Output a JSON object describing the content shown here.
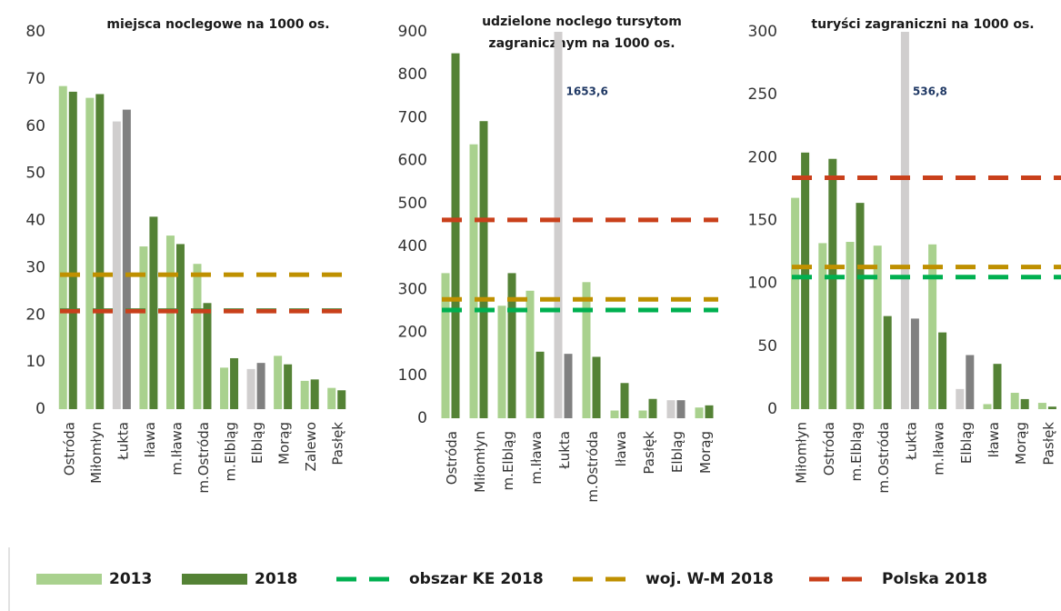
{
  "chart_data": [
    {
      "type": "bar",
      "title": [
        "miejsca noclegowe na 1000 os."
      ],
      "categories": [
        "Ostróda",
        "Miłomłyn",
        "Łukta",
        "Iława",
        "m.Iława",
        "m.Ostróda",
        "m.Elbląg",
        "Elbląg",
        "Morąg",
        "Zalewo",
        "Pasłęk"
      ],
      "series": [
        {
          "name": "2013",
          "color": "#a9d18e",
          "values": [
            68.5,
            66,
            61,
            34.5,
            36.8,
            30.8,
            8.8,
            8.5,
            11.3,
            6,
            4.5
          ],
          "colors": [
            "#a9d18e",
            "#a9d18e",
            "#d0cece",
            "#a9d18e",
            "#a9d18e",
            "#a9d18e",
            "#a9d18e",
            "#d0cece",
            "#a9d18e",
            "#a9d18e",
            "#a9d18e"
          ]
        },
        {
          "name": "2018",
          "color": "#548235",
          "values": [
            67.3,
            66.8,
            63.5,
            40.8,
            35,
            22.5,
            10.8,
            9.8,
            9.5,
            6.3,
            4
          ],
          "colors": [
            "#548235",
            "#548235",
            "#808080",
            "#548235",
            "#548235",
            "#548235",
            "#548235",
            "#808080",
            "#548235",
            "#548235",
            "#548235"
          ]
        }
      ],
      "reference_lines": [
        {
          "name": "obszar KE 2018",
          "color": "#00b050",
          "value": 20.9
        },
        {
          "name": "woj. W-M 2018",
          "color": "#bf9000",
          "value": 28.5
        },
        {
          "name": "Polska 2018",
          "color": "#c9401b",
          "value": 20.8
        }
      ],
      "ylim": [
        0,
        80
      ],
      "yticks": [
        0,
        10,
        20,
        30,
        40,
        50,
        60,
        70,
        80
      ]
    },
    {
      "type": "bar",
      "title": [
        "udzielone noclego tursytom",
        "zagranicznym na 1000 os."
      ],
      "categories": [
        "Ostróda",
        "Miłomłyn",
        "m.Elbląg",
        "m.Iława",
        "Łukta",
        "m.Ostróda",
        "Iława",
        "Pasłęk",
        "Elbląg",
        "Morąg"
      ],
      "series": [
        {
          "name": "2013",
          "color": "#a9d18e",
          "values": [
            338,
            638,
            262,
            297,
            1653.6,
            317,
            18,
            18,
            42,
            25
          ],
          "value_labels": [
            null,
            null,
            null,
            null,
            "1653,6",
            null,
            null,
            null,
            null,
            null
          ],
          "colors": [
            "#a9d18e",
            "#a9d18e",
            "#a9d18e",
            "#a9d18e",
            "#d0cece",
            "#a9d18e",
            "#a9d18e",
            "#a9d18e",
            "#d0cece",
            "#a9d18e"
          ]
        },
        {
          "name": "2018",
          "color": "#548235",
          "values": [
            850,
            692,
            338,
            155,
            150,
            143,
            82,
            45,
            42,
            30
          ],
          "colors": [
            "#548235",
            "#548235",
            "#548235",
            "#548235",
            "#808080",
            "#548235",
            "#548235",
            "#548235",
            "#808080",
            "#548235"
          ]
        }
      ],
      "reference_lines": [
        {
          "name": "obszar KE 2018",
          "color": "#00b050",
          "value": 252
        },
        {
          "name": "woj. W-M 2018",
          "color": "#bf9000",
          "value": 277
        },
        {
          "name": "Polska 2018",
          "color": "#c9401b",
          "value": 462
        }
      ],
      "ylim": [
        0,
        900
      ],
      "yticks": [
        0,
        100,
        200,
        300,
        400,
        500,
        600,
        700,
        800,
        900
      ]
    },
    {
      "type": "bar",
      "title": [
        "turyści zagraniczni na 1000 os."
      ],
      "categories": [
        "Miłomłyn",
        "Ostróda",
        "m.Elbląg",
        "m.Ostróda",
        "Łukta",
        "m.Iława",
        "Elbląg",
        "Iława",
        "Morąg",
        "Pasłęk"
      ],
      "series": [
        {
          "name": "2013",
          "color": "#a9d18e",
          "values": [
            168,
            132,
            133,
            130,
            536.8,
            131,
            16,
            4,
            13,
            5
          ],
          "value_labels": [
            null,
            null,
            null,
            null,
            "536,8",
            null,
            null,
            null,
            null,
            null
          ],
          "colors": [
            "#a9d18e",
            "#a9d18e",
            "#a9d18e",
            "#a9d18e",
            "#d0cece",
            "#a9d18e",
            "#d0cece",
            "#a9d18e",
            "#a9d18e",
            "#a9d18e"
          ]
        },
        {
          "name": "2018",
          "color": "#548235",
          "values": [
            204,
            199,
            164,
            74,
            72,
            61,
            43,
            36,
            8,
            2
          ],
          "colors": [
            "#548235",
            "#548235",
            "#548235",
            "#548235",
            "#808080",
            "#548235",
            "#808080",
            "#548235",
            "#548235",
            "#548235"
          ]
        }
      ],
      "reference_lines": [
        {
          "name": "obszar KE 2018",
          "color": "#00b050",
          "value": 105
        },
        {
          "name": "woj. W-M 2018",
          "color": "#bf9000",
          "value": 113
        },
        {
          "name": "Polska 2018",
          "color": "#c9401b",
          "value": 184
        }
      ],
      "ylim": [
        0,
        300
      ],
      "yticks": [
        0,
        50,
        100,
        150,
        200,
        250,
        300
      ]
    }
  ]
}
